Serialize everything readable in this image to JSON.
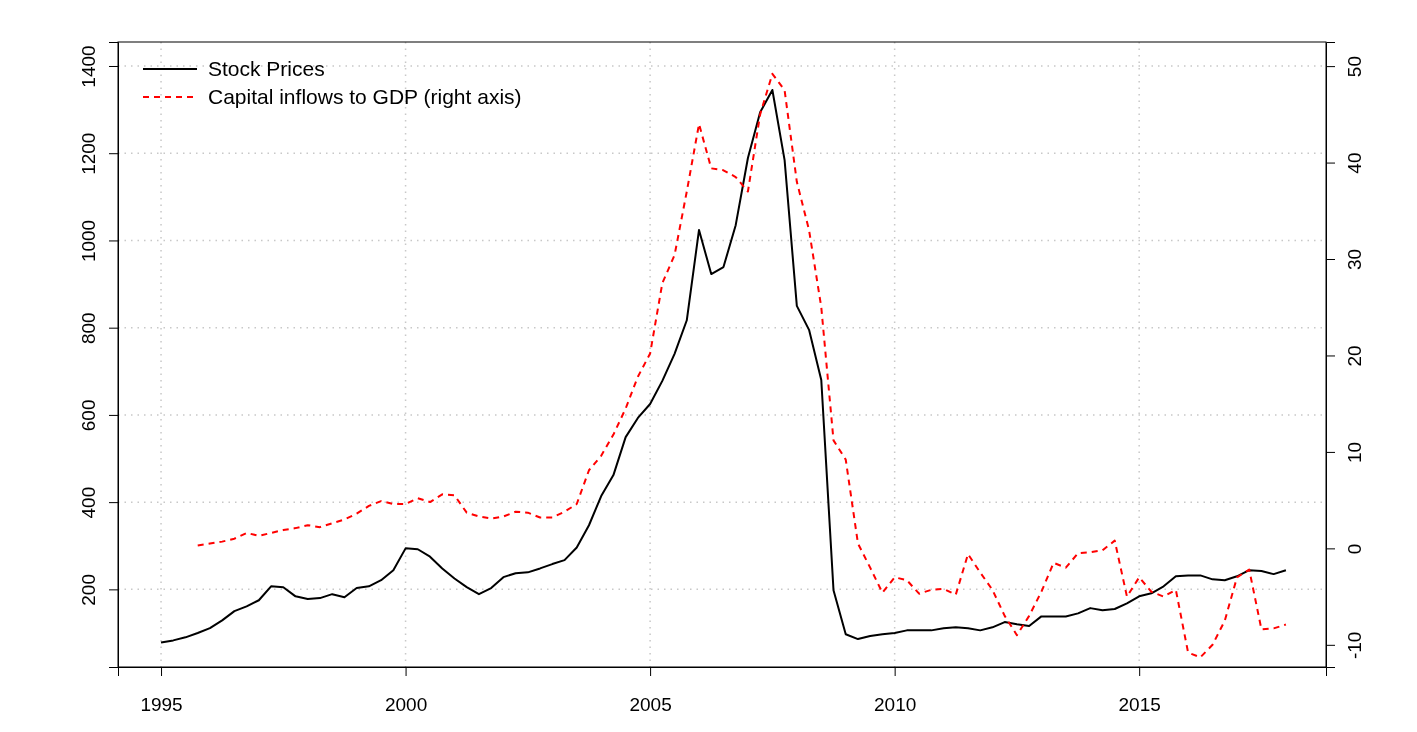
{
  "chart_data": {
    "type": "line",
    "xlim": [
      1994.12,
      2018.82
    ],
    "xticks": [
      1995,
      2000,
      2005,
      2010,
      2015
    ],
    "ylim": [
      22,
      1455
    ],
    "yticks": [
      200,
      400,
      600,
      800,
      1000,
      1200,
      1400
    ],
    "y2lim": [
      -12.3,
      52.5
    ],
    "y2ticks": [
      -10,
      0,
      10,
      20,
      30,
      40,
      50
    ],
    "grid": true,
    "legend": "top left",
    "marker": "none",
    "series": [
      {
        "name": "Stock Prices",
        "color": "#000000",
        "line_style": "solid",
        "x": [
          1995,
          1995.25,
          1995.5,
          1995.75,
          1996,
          1996.25,
          1996.5,
          1996.75,
          1997,
          1997.25,
          1997.5,
          1997.75,
          1998,
          1998.25,
          1998.5,
          1998.75,
          1999,
          1999.25,
          1999.5,
          1999.75,
          2000,
          2000.25,
          2000.5,
          2000.75,
          2001,
          2001.25,
          2001.5,
          2001.75,
          2002,
          2002.25,
          2002.5,
          2002.75,
          2003,
          2003.25,
          2003.5,
          2003.75,
          2004,
          2004.25,
          2004.5,
          2004.75,
          2005,
          2005.25,
          2005.5,
          2005.75,
          2006,
          2006.25,
          2006.5,
          2006.75,
          2007,
          2007.25,
          2007.5,
          2007.75,
          2008,
          2008.25,
          2008.5,
          2008.75,
          2009,
          2009.25,
          2009.5,
          2009.75,
          2010,
          2010.25,
          2010.5,
          2010.75,
          2011,
          2011.25,
          2011.5,
          2011.75,
          2012,
          2012.25,
          2012.5,
          2012.75,
          2013,
          2013.25,
          2013.5,
          2013.75,
          2014,
          2014.25,
          2014.5,
          2014.75,
          2015,
          2015.25,
          2015.5,
          2015.75,
          2016,
          2016.25,
          2016.5,
          2016.75,
          2017,
          2017.25,
          2017.5,
          2017.75,
          2018
        ],
        "values": [
          78,
          83,
          90,
          100,
          111,
          129,
          150,
          161,
          175,
          207,
          205,
          184,
          178,
          180,
          189,
          182,
          203,
          207,
          221,
          244,
          294,
          292,
          275,
          248,
          225,
          205,
          189,
          203,
          228,
          237,
          239,
          248,
          258,
          267,
          296,
          347,
          414,
          462,
          549,
          593,
          625,
          678,
          740,
          817,
          1024,
          923,
          939,
          1035,
          1189,
          1294,
          1345,
          1184,
          850,
          795,
          680,
          198,
          97,
          86,
          93,
          97,
          100,
          106,
          106,
          106,
          111,
          113,
          111,
          106,
          113,
          125,
          120,
          116,
          138,
          138,
          138,
          145,
          157,
          152,
          155,
          168,
          184,
          191,
          207,
          230,
          232,
          232,
          223,
          221,
          230,
          244,
          242,
          235,
          244
        ]
      },
      {
        "name": "Capital inflows to GDP (right axis)",
        "color": "#ff0000",
        "line_style": "dashed",
        "axis": "y2",
        "x": [
          1995.75,
          1996,
          1996.25,
          1996.5,
          1996.75,
          1997,
          1997.25,
          1997.5,
          1997.75,
          1998,
          1998.25,
          1998.5,
          1998.75,
          1999,
          1999.25,
          1999.5,
          1999.75,
          2000,
          2000.25,
          2000.5,
          2000.75,
          2001,
          2001.25,
          2001.5,
          2001.75,
          2002,
          2002.25,
          2002.5,
          2002.75,
          2003,
          2003.25,
          2003.5,
          2003.75,
          2004,
          2004.25,
          2004.5,
          2004.75,
          2005,
          2005.25,
          2005.5,
          2005.75,
          2006,
          2006.25,
          2006.5,
          2006.75,
          2007,
          2007.25,
          2007.5,
          2007.75,
          2008,
          2008.25,
          2008.5,
          2008.75,
          2009,
          2009.25,
          2009.5,
          2009.75,
          2010,
          2010.25,
          2010.5,
          2010.75,
          2011,
          2011.25,
          2011.5,
          2011.75,
          2012,
          2012.25,
          2012.5,
          2012.75,
          2013,
          2013.25,
          2013.5,
          2013.75,
          2014,
          2014.25,
          2014.5,
          2014.75,
          2015,
          2015.25,
          2015.5,
          2015.75,
          2016,
          2016.25,
          2016.5,
          2016.75,
          2017,
          2017.25,
          2017.5,
          2017.75,
          2018
        ],
        "values": [
          0.3,
          0.5,
          0.7,
          1.0,
          1.6,
          1.3,
          1.6,
          1.9,
          2.1,
          2.4,
          2.2,
          2.6,
          3.0,
          3.6,
          4.4,
          4.9,
          4.6,
          4.6,
          5.2,
          4.8,
          5.6,
          5.5,
          3.7,
          3.3,
          3.1,
          3.3,
          3.8,
          3.7,
          3.2,
          3.2,
          3.8,
          4.6,
          8.1,
          9.6,
          11.8,
          14.5,
          17.8,
          20.2,
          27.5,
          30.4,
          37,
          44,
          39.4,
          39.2,
          38.5,
          37,
          45,
          49.2,
          47.5,
          38,
          33,
          25,
          11.2,
          9.2,
          0.5,
          -2.0,
          -4.6,
          -3.0,
          -3.3,
          -4.7,
          -4.3,
          -4.2,
          -4.8,
          -0.6,
          -2.5,
          -4.3,
          -7.0,
          -9.0,
          -7.0,
          -4.5,
          -1.5,
          -2.0,
          -0.5,
          -0.4,
          -0.2,
          0.8,
          -5.0,
          -3.0,
          -4.5,
          -5.0,
          -4.3,
          -10.8,
          -11.3,
          -10.0,
          -7.5,
          -3.0,
          -2.2,
          -8.4,
          -8.3,
          -7.9
        ]
      }
    ]
  }
}
